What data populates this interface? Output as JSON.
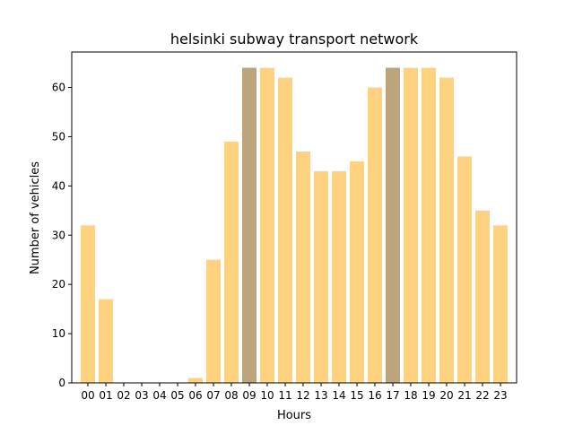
{
  "chart_data": {
    "type": "bar",
    "title": "helsinki subway transport network",
    "xlabel": "Hours",
    "ylabel": "Number of vehicles",
    "categories": [
      "00",
      "01",
      "02",
      "03",
      "04",
      "05",
      "06",
      "07",
      "08",
      "09",
      "10",
      "11",
      "12",
      "13",
      "14",
      "15",
      "16",
      "17",
      "18",
      "19",
      "20",
      "21",
      "22",
      "23"
    ],
    "values": [
      32,
      17,
      0,
      0,
      0,
      0,
      1,
      25,
      49,
      64,
      64,
      62,
      47,
      43,
      43,
      45,
      60,
      64,
      64,
      64,
      62,
      46,
      35,
      32
    ],
    "highlighted": [
      "09",
      "17"
    ],
    "ylim": [
      0,
      67.2
    ],
    "yticks": [
      0,
      10,
      20,
      30,
      40,
      50,
      60
    ],
    "grid": false,
    "colors": {
      "bar": "#ffd280",
      "highlight": "#bca57a"
    }
  }
}
